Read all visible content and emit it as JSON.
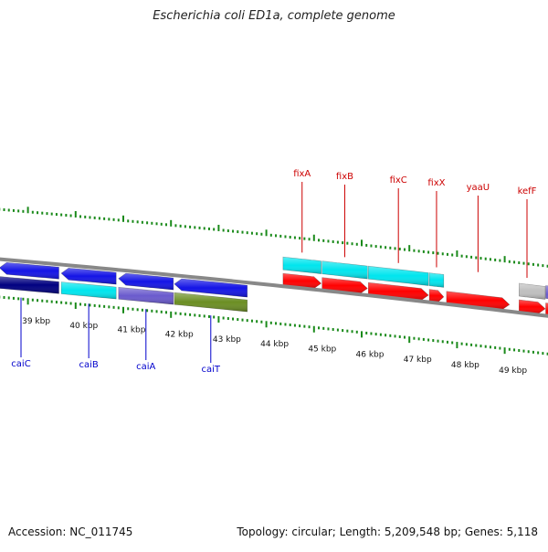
{
  "title": "Escherichia coli ED1a, complete genome",
  "accession_text": "Accession: NC_011745",
  "topology_text": "Topology: circular; Length: 5,209,548 bp; Genes: 5,118",
  "tick_labels": [
    "39 kbp",
    "40 kbp",
    "41 kbp",
    "42 kbp",
    "43 kbp",
    "44 kbp",
    "45 kbp",
    "46 kbp",
    "47 kbp",
    "48 kbp",
    "49 kbp"
  ],
  "colors": {
    "forward_gene": "#ff0000",
    "forward_cds": "#00e5ee",
    "reverse_gene": "#1414e6",
    "reverse_cds_a": "#00e5ee",
    "reverse_cds_b": "#6a5acd",
    "reverse_cds_c": "#6b8e23",
    "reverse_cds_d": "#000080",
    "backbone": "#888888",
    "ticks": "#1a8a1a",
    "label_forward": "#cc0000",
    "label_reverse": "#0000cc",
    "gray_feature": "#bfbfbf"
  },
  "genes_forward": [
    {
      "name": "fixA",
      "start_kbp": 44.35,
      "end_kbp": 45.15
    },
    {
      "name": "fixB",
      "start_kbp": 45.17,
      "end_kbp": 46.12
    },
    {
      "name": "fixC",
      "start_kbp": 46.14,
      "end_kbp": 47.4
    },
    {
      "name": "fixX",
      "start_kbp": 47.42,
      "end_kbp": 47.72
    },
    {
      "name": "yaaU",
      "start_kbp": 47.78,
      "end_kbp": 49.1
    },
    {
      "name": "kefF",
      "start_kbp": 49.3,
      "end_kbp": 49.85
    }
  ],
  "genes_reverse": [
    {
      "name": "caiC",
      "start_kbp": 38.4,
      "end_kbp": 39.65
    },
    {
      "name": "caiB",
      "start_kbp": 39.7,
      "end_kbp": 40.85
    },
    {
      "name": "caiA",
      "start_kbp": 40.9,
      "end_kbp": 42.05
    },
    {
      "name": "caiT",
      "start_kbp": 42.07,
      "end_kbp": 43.6
    }
  ]
}
